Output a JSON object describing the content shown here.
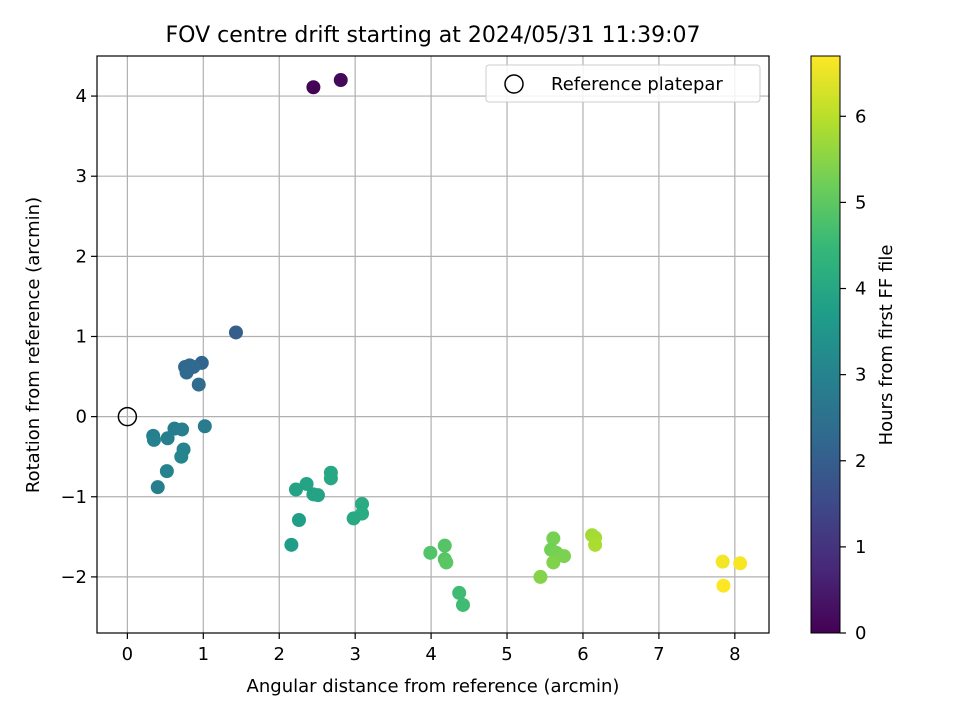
{
  "chart_data": {
    "type": "scatter",
    "title": "FOV centre drift starting at 2024/05/31 11:39:07",
    "xlabel": "Angular distance from reference (arcmin)",
    "ylabel": "Rotation from reference (arcmin)",
    "xlim": [
      -0.4,
      8.45
    ],
    "ylim": [
      -2.7,
      4.5
    ],
    "xticks": [
      0,
      1,
      2,
      3,
      4,
      5,
      6,
      7,
      8
    ],
    "yticks": [
      -2,
      -1,
      0,
      1,
      2,
      3,
      4
    ],
    "grid": true,
    "legend": {
      "position": "top-right",
      "entries": [
        "Reference platepar"
      ]
    },
    "reference_point": {
      "name": "Reference platepar",
      "x": 0,
      "y": 0,
      "marker": "open-circle",
      "color": "#000000"
    },
    "colorbar": {
      "label": "Hours from first FF file",
      "range": [
        0,
        6.7
      ],
      "ticks": [
        0,
        1,
        2,
        3,
        4,
        5,
        6
      ],
      "colormap": "viridis",
      "stops": [
        "#440154",
        "#482878",
        "#3e4989",
        "#31688e",
        "#26828e",
        "#1f9e89",
        "#35b779",
        "#6ece58",
        "#b5de2b",
        "#fde725"
      ]
    },
    "series": [
      {
        "color_by": "Hours from first FF file",
        "points": [
          {
            "x": 2.45,
            "y": 4.11,
            "c": 0.05
          },
          {
            "x": 2.81,
            "y": 4.2,
            "c": 0.15
          },
          {
            "x": 1.43,
            "y": 1.05,
            "c": 2.0
          },
          {
            "x": 0.98,
            "y": 0.67,
            "c": 2.15
          },
          {
            "x": 0.76,
            "y": 0.62,
            "c": 2.2
          },
          {
            "x": 0.82,
            "y": 0.64,
            "c": 2.25
          },
          {
            "x": 0.87,
            "y": 0.62,
            "c": 2.3
          },
          {
            "x": 0.78,
            "y": 0.55,
            "c": 2.3
          },
          {
            "x": 0.94,
            "y": 0.4,
            "c": 2.35
          },
          {
            "x": 0.62,
            "y": -0.15,
            "c": 2.8
          },
          {
            "x": 1.02,
            "y": -0.12,
            "c": 2.8
          },
          {
            "x": 0.72,
            "y": -0.16,
            "c": 2.85
          },
          {
            "x": 0.34,
            "y": -0.24,
            "c": 2.9
          },
          {
            "x": 0.53,
            "y": -0.27,
            "c": 2.9
          },
          {
            "x": 0.35,
            "y": -0.29,
            "c": 2.95
          },
          {
            "x": 0.74,
            "y": -0.41,
            "c": 3.0
          },
          {
            "x": 0.71,
            "y": -0.5,
            "c": 3.05
          },
          {
            "x": 0.52,
            "y": -0.68,
            "c": 3.0
          },
          {
            "x": 0.4,
            "y": -0.88,
            "c": 2.9
          },
          {
            "x": 2.68,
            "y": -0.7,
            "c": 4.0
          },
          {
            "x": 2.68,
            "y": -0.77,
            "c": 4.0
          },
          {
            "x": 2.36,
            "y": -0.84,
            "c": 3.9
          },
          {
            "x": 2.22,
            "y": -0.91,
            "c": 3.85
          },
          {
            "x": 2.45,
            "y": -0.97,
            "c": 3.85
          },
          {
            "x": 2.51,
            "y": -0.98,
            "c": 3.9
          },
          {
            "x": 3.09,
            "y": -1.09,
            "c": 4.1
          },
          {
            "x": 3.09,
            "y": -1.21,
            "c": 4.1
          },
          {
            "x": 2.98,
            "y": -1.27,
            "c": 4.05
          },
          {
            "x": 2.26,
            "y": -1.29,
            "c": 3.75
          },
          {
            "x": 2.16,
            "y": -1.6,
            "c": 3.7
          },
          {
            "x": 4.18,
            "y": -1.61,
            "c": 4.9
          },
          {
            "x": 3.99,
            "y": -1.7,
            "c": 4.85
          },
          {
            "x": 4.18,
            "y": -1.78,
            "c": 4.9
          },
          {
            "x": 4.2,
            "y": -1.82,
            "c": 4.95
          },
          {
            "x": 4.37,
            "y": -2.2,
            "c": 4.6
          },
          {
            "x": 4.42,
            "y": -2.35,
            "c": 4.6
          },
          {
            "x": 5.61,
            "y": -1.52,
            "c": 5.3
          },
          {
            "x": 5.58,
            "y": -1.66,
            "c": 5.25
          },
          {
            "x": 5.65,
            "y": -1.7,
            "c": 5.3
          },
          {
            "x": 5.75,
            "y": -1.74,
            "c": 5.35
          },
          {
            "x": 5.61,
            "y": -1.82,
            "c": 5.4
          },
          {
            "x": 5.44,
            "y": -2.0,
            "c": 5.45
          },
          {
            "x": 6.12,
            "y": -1.48,
            "c": 5.75
          },
          {
            "x": 6.16,
            "y": -1.51,
            "c": 5.8
          },
          {
            "x": 6.16,
            "y": -1.6,
            "c": 5.85
          },
          {
            "x": 7.84,
            "y": -1.81,
            "c": 6.6
          },
          {
            "x": 8.07,
            "y": -1.83,
            "c": 6.65
          },
          {
            "x": 7.85,
            "y": -2.11,
            "c": 6.7
          }
        ]
      }
    ]
  }
}
